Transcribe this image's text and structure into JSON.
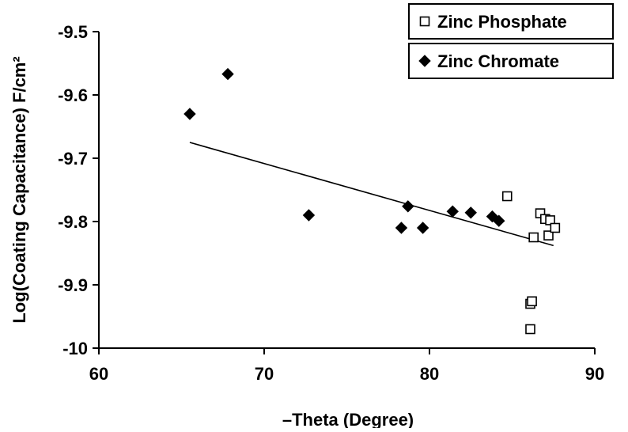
{
  "chart_data": {
    "type": "scatter",
    "xlabel": "–Theta (Degree)",
    "ylabel": "Log(Coating Capacitance) F/cm²",
    "xlim": [
      60,
      90
    ],
    "ylim": [
      -10,
      -9.5
    ],
    "xticks": [
      60,
      70,
      80,
      90
    ],
    "yticks": [
      -9.5,
      -9.6,
      -9.7,
      -9.8,
      -9.9,
      -10
    ],
    "xtick_labels": [
      "60",
      "70",
      "80",
      "90"
    ],
    "ytick_labels": [
      "-9.5",
      "-9.6",
      "-9.7",
      "-9.8",
      "-9.9",
      "-10"
    ],
    "grid": false,
    "legend_position": "top-right",
    "series": [
      {
        "name": "Zinc Phosphate",
        "marker": "open-square",
        "color": "#000000",
        "points": [
          {
            "x": 84.7,
            "y": -9.76
          },
          {
            "x": 86.3,
            "y": -9.825
          },
          {
            "x": 86.7,
            "y": -9.787
          },
          {
            "x": 87.0,
            "y": -9.796
          },
          {
            "x": 87.2,
            "y": -9.822
          },
          {
            "x": 87.3,
            "y": -9.798
          },
          {
            "x": 87.6,
            "y": -9.81
          },
          {
            "x": 86.1,
            "y": -9.93
          },
          {
            "x": 86.2,
            "y": -9.926
          },
          {
            "x": 86.1,
            "y": -9.97
          }
        ]
      },
      {
        "name": "Zinc Chromate",
        "marker": "filled-diamond",
        "color": "#000000",
        "points": [
          {
            "x": 65.5,
            "y": -9.63
          },
          {
            "x": 67.8,
            "y": -9.567
          },
          {
            "x": 72.7,
            "y": -9.79
          },
          {
            "x": 78.3,
            "y": -9.81
          },
          {
            "x": 78.7,
            "y": -9.776
          },
          {
            "x": 79.6,
            "y": -9.81
          },
          {
            "x": 81.4,
            "y": -9.784
          },
          {
            "x": 82.5,
            "y": -9.786
          },
          {
            "x": 83.8,
            "y": -9.792
          },
          {
            "x": 84.2,
            "y": -9.799
          }
        ]
      }
    ],
    "trendline": {
      "x": [
        65.5,
        87.5
      ],
      "y": [
        -9.675,
        -9.838
      ],
      "color": "#000000"
    }
  }
}
